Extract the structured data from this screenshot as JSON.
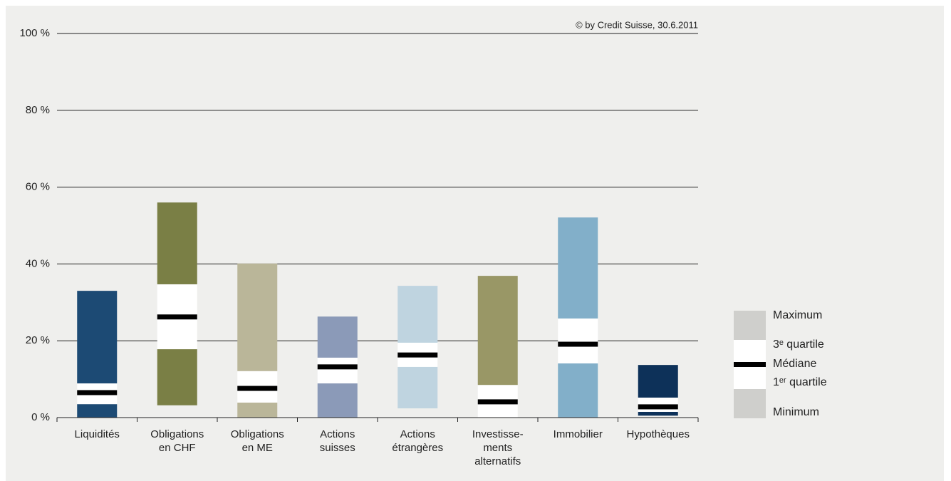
{
  "chart_data": {
    "type": "box",
    "source": "© by Credit Suisse, 30.6.2011",
    "categories": [
      "Liquidités",
      "Obligations\nen CHF",
      "Obligations\nen ME",
      "Actions\nsuisses",
      "Actions\nétrangères",
      "Investisse-\nments\nalternatifs",
      "Immobilier",
      "Hypothèques"
    ],
    "boxes": [
      {
        "min": 0,
        "q1": 3.5,
        "median": 6.5,
        "q3": 8.9,
        "max": 33.0,
        "color": "#1c4a74"
      },
      {
        "min": 3.2,
        "q1": 17.8,
        "median": 26.2,
        "q3": 34.7,
        "max": 56.0,
        "color": "#7a7f45"
      },
      {
        "min": 0,
        "q1": 3.9,
        "median": 7.6,
        "q3": 12.1,
        "max": 40.1,
        "color": "#bab699"
      },
      {
        "min": 0,
        "q1": 8.9,
        "median": 13.2,
        "q3": 15.6,
        "max": 26.3,
        "color": "#8b9ab8"
      },
      {
        "min": 2.4,
        "q1": 13.2,
        "median": 16.3,
        "q3": 19.5,
        "max": 34.3,
        "color": "#bfd4e0"
      },
      {
        "min": 0,
        "q1": 0,
        "median": 4.1,
        "q3": 8.5,
        "max": 36.9,
        "color": "#999766"
      },
      {
        "min": 0,
        "q1": 14.1,
        "median": 19.1,
        "q3": 25.8,
        "max": 52.1,
        "color": "#82afc9"
      },
      {
        "min": 0.5,
        "q1": 1.5,
        "median": 2.8,
        "q3": 5.2,
        "max": 13.7,
        "color": "#0d3159"
      }
    ],
    "ylim": [
      0,
      100
    ],
    "yticks": [
      {
        "value": 0,
        "label": "0 %"
      },
      {
        "value": 20,
        "label": "20 %"
      },
      {
        "value": 40,
        "label": "40 %"
      },
      {
        "value": 60,
        "label": "60 %"
      },
      {
        "value": 80,
        "label": "80 %"
      },
      {
        "value": 100,
        "label": "100 %"
      }
    ],
    "grid": true,
    "legend": [
      "Maximum",
      "3ᵉ quartile",
      "Médiane",
      "1ᵉʳ quartile",
      "Minimum"
    ]
  }
}
